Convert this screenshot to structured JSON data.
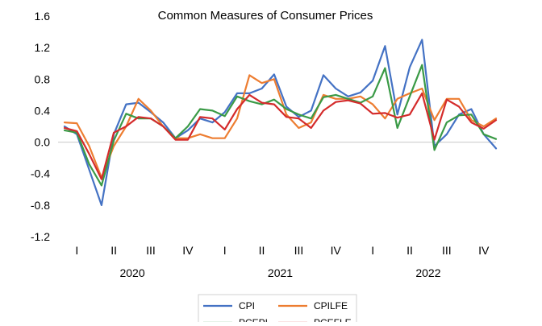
{
  "chart_data": {
    "type": "line",
    "title": "Common Measures of Consumer Prices",
    "xlabel": "",
    "ylabel": "",
    "ylim": [
      -1.2,
      1.6
    ],
    "yticks": [
      -1.2,
      -0.8,
      -0.4,
      0.0,
      0.4,
      0.8,
      1.2,
      1.6
    ],
    "ytick_labels": [
      "-1.2",
      "-0.8",
      "-0.4",
      "0.0",
      "0.4",
      "0.8",
      "1.2",
      "1.6"
    ],
    "x": [
      "2020-01",
      "2020-02",
      "2020-03",
      "2020-04",
      "2020-05",
      "2020-06",
      "2020-07",
      "2020-08",
      "2020-09",
      "2020-10",
      "2020-11",
      "2020-12",
      "2021-01",
      "2021-02",
      "2021-03",
      "2021-04",
      "2021-05",
      "2021-06",
      "2021-07",
      "2021-08",
      "2021-09",
      "2021-10",
      "2021-11",
      "2021-12",
      "2022-01",
      "2022-02",
      "2022-03",
      "2022-04",
      "2022-05",
      "2022-06",
      "2022-07",
      "2022-08",
      "2022-09",
      "2022-10",
      "2022-11",
      "2022-12"
    ],
    "quarter_labels": [
      {
        "label": "I",
        "month_index": 1
      },
      {
        "label": "II",
        "month_index": 4
      },
      {
        "label": "III",
        "month_index": 7
      },
      {
        "label": "IV",
        "month_index": 10
      },
      {
        "label": "I",
        "month_index": 13
      },
      {
        "label": "II",
        "month_index": 16
      },
      {
        "label": "III",
        "month_index": 19
      },
      {
        "label": "IV",
        "month_index": 22
      },
      {
        "label": "I",
        "month_index": 25
      },
      {
        "label": "II",
        "month_index": 28
      },
      {
        "label": "III",
        "month_index": 31
      },
      {
        "label": "IV",
        "month_index": 34
      }
    ],
    "year_labels": [
      {
        "label": "2020",
        "month_index": 5.5
      },
      {
        "label": "2021",
        "month_index": 17.5
      },
      {
        "label": "2022",
        "month_index": 29.5
      }
    ],
    "series": [
      {
        "name": "CPI",
        "color": "#4472C4",
        "values": [
          0.2,
          0.1,
          -0.35,
          -0.8,
          0.1,
          0.48,
          0.5,
          0.38,
          0.25,
          0.05,
          0.15,
          0.3,
          0.25,
          0.38,
          0.62,
          0.62,
          0.68,
          0.86,
          0.45,
          0.32,
          0.4,
          0.85,
          0.68,
          0.58,
          0.63,
          0.78,
          1.22,
          0.35,
          0.95,
          1.3,
          -0.05,
          0.1,
          0.35,
          0.42,
          0.1,
          -0.08
        ]
      },
      {
        "name": "CPILFE",
        "color": "#ED7D31",
        "values": [
          0.25,
          0.24,
          -0.05,
          -0.45,
          -0.05,
          0.2,
          0.55,
          0.4,
          0.2,
          0.05,
          0.05,
          0.1,
          0.05,
          0.05,
          0.3,
          0.85,
          0.75,
          0.8,
          0.35,
          0.18,
          0.25,
          0.6,
          0.55,
          0.55,
          0.58,
          0.48,
          0.3,
          0.55,
          0.62,
          0.68,
          0.28,
          0.55,
          0.55,
          0.28,
          0.2,
          0.3
        ]
      },
      {
        "name": "PCEPI",
        "color": "#3A9A46",
        "values": [
          0.15,
          0.12,
          -0.28,
          -0.55,
          0.02,
          0.36,
          0.3,
          0.3,
          0.2,
          0.05,
          0.2,
          0.42,
          0.4,
          0.33,
          0.58,
          0.52,
          0.48,
          0.54,
          0.42,
          0.35,
          0.3,
          0.57,
          0.6,
          0.55,
          0.5,
          0.58,
          0.94,
          0.18,
          0.58,
          0.98,
          -0.1,
          0.25,
          0.34,
          0.35,
          0.1,
          0.04
        ]
      },
      {
        "name": "PCEFLE",
        "color": "#D42B2B",
        "values": [
          0.18,
          0.14,
          -0.15,
          -0.47,
          0.12,
          0.2,
          0.32,
          0.3,
          0.2,
          0.03,
          0.03,
          0.32,
          0.3,
          0.16,
          0.42,
          0.6,
          0.5,
          0.48,
          0.32,
          0.3,
          0.18,
          0.4,
          0.51,
          0.53,
          0.49,
          0.36,
          0.37,
          0.31,
          0.35,
          0.62,
          0.03,
          0.54,
          0.45,
          0.25,
          0.17,
          0.28
        ]
      }
    ],
    "legend_position": "bottom",
    "grid": false
  }
}
